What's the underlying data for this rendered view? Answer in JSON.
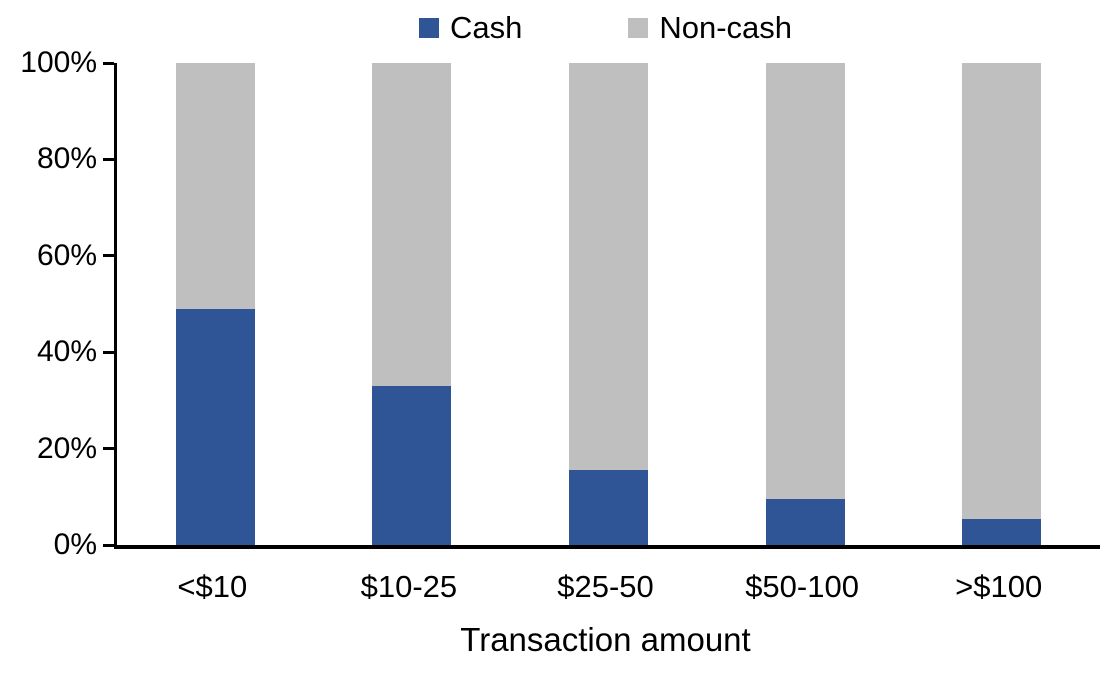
{
  "chart_data": {
    "type": "bar",
    "stacked": true,
    "stacking": "percent",
    "title": "",
    "xlabel": "Transaction amount",
    "ylabel": "",
    "categories": [
      "<$10",
      "$10-25",
      "$25-50",
      "$50-100",
      ">$100"
    ],
    "series": [
      {
        "name": "Cash",
        "color": "#2F5597",
        "values": [
          49,
          33,
          15.5,
          9.5,
          5.5
        ]
      },
      {
        "name": "Non-cash",
        "color": "#BFBFBF",
        "values": [
          51,
          67,
          84.5,
          90.5,
          94.5
        ]
      }
    ],
    "ylim": [
      0,
      100
    ],
    "ytick_values": [
      0,
      20,
      40,
      60,
      80,
      100
    ],
    "ytick_labels": [
      "0%",
      "20%",
      "40%",
      "60%",
      "80%",
      "100%"
    ],
    "legend_position": "top",
    "grid": false
  },
  "colors": {
    "axis": "#000000",
    "text": "#000000",
    "background": "#FFFFFF"
  }
}
